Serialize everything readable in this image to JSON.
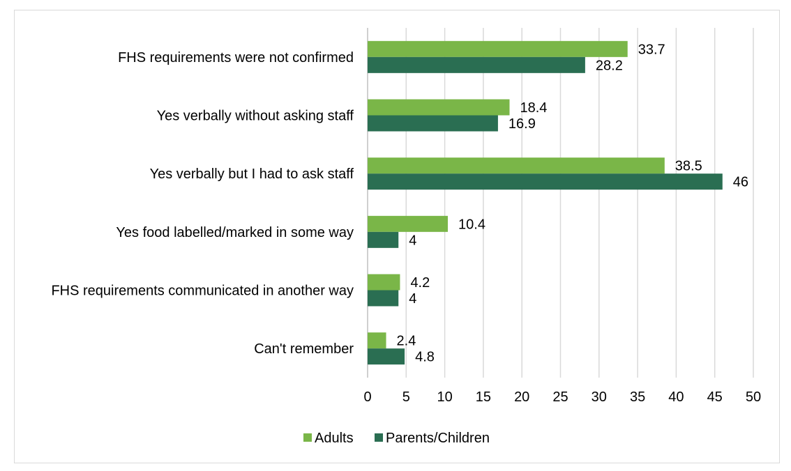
{
  "chart_data": {
    "type": "bar",
    "orientation": "horizontal",
    "categories": [
      "FHS requirements were not confirmed",
      "Yes verbally without asking staff",
      "Yes verbally but I had to ask staff",
      "Yes food labelled/marked in some way",
      "FHS requirements communicated in another way",
      "Can't remember"
    ],
    "series": [
      {
        "name": "Adults",
        "color": "#7ab648",
        "values": [
          33.7,
          18.4,
          38.5,
          10.4,
          4.2,
          2.4
        ],
        "labels": [
          "33.7",
          "18.4",
          "38.5",
          "10.4",
          "4.2",
          "2.4"
        ]
      },
      {
        "name": "Parents/Children",
        "color": "#2a6e52",
        "values": [
          28.2,
          16.9,
          46,
          4,
          4,
          4.8
        ],
        "labels": [
          "28.2",
          "16.9",
          "46",
          "4",
          "4",
          "4.8"
        ]
      }
    ],
    "xlim": [
      0,
      50
    ],
    "xticks": [
      "0",
      "5",
      "10",
      "15",
      "20",
      "25",
      "30",
      "35",
      "40",
      "45",
      "50"
    ],
    "grid": true,
    "legend_position": "bottom",
    "title": "",
    "xlabel": "",
    "ylabel": ""
  }
}
